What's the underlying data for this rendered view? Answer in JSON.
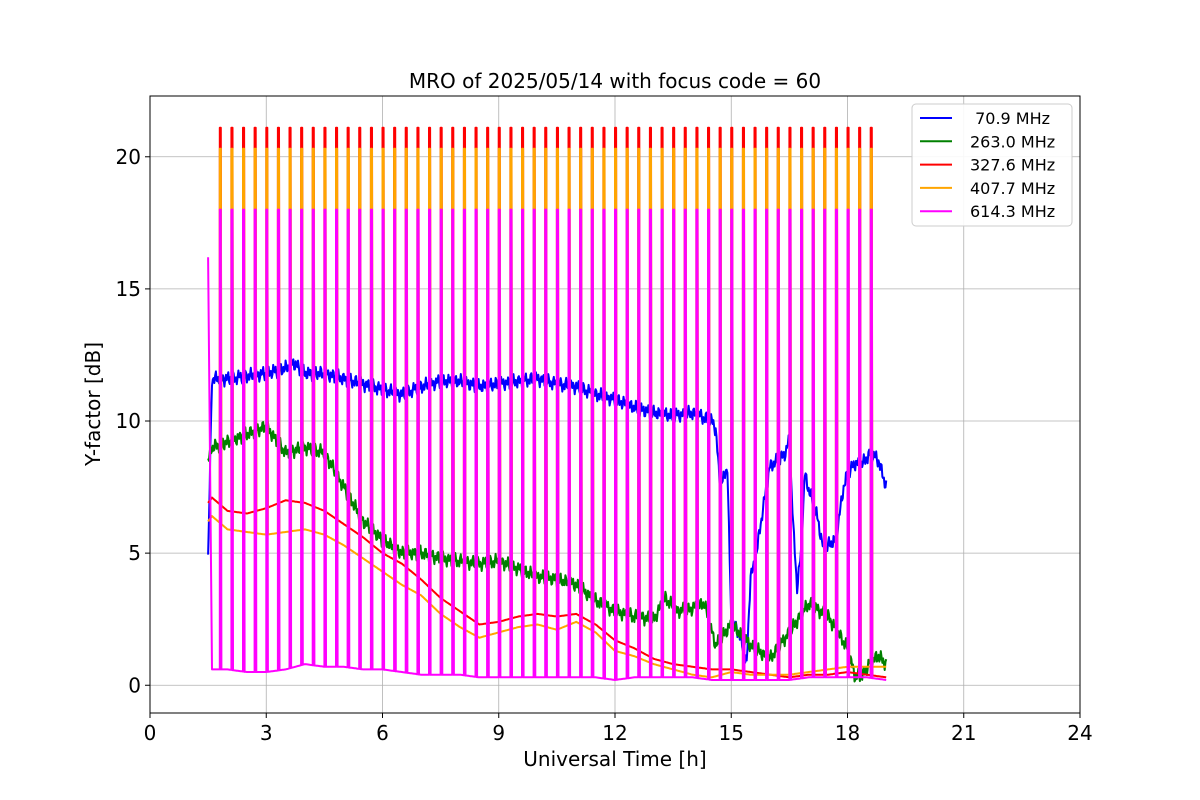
{
  "chart_data": {
    "type": "line",
    "title": "MRO of 2025/05/14 with focus code = 60",
    "xlabel": "Universal Time [h]",
    "ylabel": "Y-factor [dB]",
    "xlim": [
      0,
      24
    ],
    "ylim": [
      -1.05,
      22.3
    ],
    "xticks": [
      0,
      3,
      6,
      9,
      12,
      15,
      18,
      21,
      24
    ],
    "yticks": [
      0,
      5,
      10,
      15,
      20
    ],
    "grid": true,
    "legend_position": "top-right",
    "calibration_pulses": {
      "start_h": 1.5,
      "end_h": 18.85,
      "interval_h": 0.3,
      "width_h": 0.07
    },
    "series": [
      {
        "name": " 70.9 MHz",
        "color": "#0000ff",
        "pulse_top": null,
        "x": [
          1.5,
          1.6,
          2.0,
          2.5,
          3.0,
          3.5,
          3.7,
          4.0,
          4.5,
          5.0,
          5.5,
          6.0,
          6.5,
          7.0,
          7.5,
          8.0,
          8.5,
          9.0,
          9.5,
          10.0,
          10.5,
          11.0,
          11.5,
          12.0,
          12.5,
          13.0,
          13.5,
          14.0,
          14.5,
          14.6,
          14.7,
          14.8,
          14.9,
          15.0,
          15.2,
          15.4,
          15.5,
          15.6,
          15.8,
          16.0,
          16.2,
          16.4,
          16.5,
          16.6,
          16.7,
          16.8,
          16.9,
          17.0,
          17.2,
          17.4,
          17.5,
          17.7,
          17.9,
          18.0,
          18.2,
          18.4,
          18.6,
          18.8,
          19.0
        ],
        "y": [
          4.8,
          11.6,
          11.6,
          11.7,
          11.8,
          12.0,
          12.2,
          11.8,
          11.8,
          11.6,
          11.4,
          11.2,
          11.0,
          11.3,
          11.5,
          11.5,
          11.3,
          11.4,
          11.5,
          11.6,
          11.4,
          11.3,
          11.0,
          10.8,
          10.5,
          10.3,
          10.2,
          10.3,
          10.0,
          9.7,
          7.7,
          7.8,
          8.3,
          2.4,
          2.0,
          0.8,
          4.2,
          4.5,
          6.5,
          8.3,
          8.5,
          8.8,
          9.3,
          6.0,
          3.7,
          5.0,
          8.0,
          7.4,
          6.5,
          5.0,
          5.3,
          5.5,
          7.5,
          8.0,
          8.4,
          8.4,
          8.8,
          8.5,
          7.5
        ]
      },
      {
        "name": "263.0 MHz",
        "color": "#008000",
        "pulse_top": null,
        "x": [
          1.5,
          1.6,
          2.0,
          2.5,
          3.0,
          3.5,
          4.0,
          4.5,
          5.0,
          5.5,
          6.0,
          6.5,
          7.0,
          7.5,
          8.0,
          8.5,
          9.0,
          9.5,
          10.0,
          10.5,
          11.0,
          11.5,
          12.0,
          12.5,
          13.0,
          13.3,
          13.6,
          14.0,
          14.3,
          14.6,
          15.0,
          15.5,
          16.0,
          16.5,
          17.0,
          17.5,
          18.0,
          18.2,
          18.4,
          18.6,
          18.8,
          19.0
        ],
        "y": [
          8.5,
          9.0,
          9.2,
          9.5,
          9.8,
          8.8,
          9.0,
          8.8,
          7.5,
          6.2,
          5.5,
          5.0,
          5.0,
          4.8,
          4.7,
          4.6,
          4.7,
          4.4,
          4.1,
          4.0,
          3.8,
          3.2,
          2.8,
          2.6,
          2.5,
          3.3,
          2.8,
          2.9,
          3.1,
          1.5,
          2.3,
          1.5,
          1.0,
          2.0,
          3.1,
          2.6,
          1.4,
          0.3,
          0.4,
          0.9,
          1.1,
          0.8
        ]
      },
      {
        "name": "327.6 MHz",
        "color": "#ff0000",
        "pulse_top": 21.1,
        "x": [
          1.5,
          1.6,
          2.0,
          2.5,
          3.0,
          3.5,
          4.0,
          4.5,
          5.0,
          5.5,
          6.0,
          6.5,
          7.0,
          7.5,
          8.0,
          8.5,
          9.0,
          9.5,
          10.0,
          10.5,
          11.0,
          11.5,
          12.0,
          12.5,
          13.0,
          13.5,
          14.0,
          14.5,
          15.0,
          15.5,
          16.0,
          16.5,
          17.0,
          17.5,
          18.0,
          18.5,
          19.0
        ],
        "y": [
          6.9,
          7.1,
          6.6,
          6.5,
          6.7,
          7.0,
          6.9,
          6.6,
          6.1,
          5.6,
          5.0,
          4.6,
          4.0,
          3.3,
          2.8,
          2.3,
          2.4,
          2.6,
          2.7,
          2.6,
          2.7,
          2.3,
          1.7,
          1.4,
          1.0,
          0.8,
          0.7,
          0.6,
          0.6,
          0.5,
          0.4,
          0.3,
          0.4,
          0.4,
          0.5,
          0.4,
          0.3
        ]
      },
      {
        "name": "407.7 MHz",
        "color": "#ffa500",
        "pulse_top": 20.3,
        "x": [
          1.5,
          1.6,
          2.0,
          2.5,
          3.0,
          3.5,
          4.0,
          4.5,
          5.0,
          5.5,
          6.0,
          6.5,
          7.0,
          7.5,
          8.0,
          8.5,
          9.0,
          9.5,
          10.0,
          10.5,
          11.0,
          11.5,
          12.0,
          12.5,
          13.0,
          13.5,
          14.0,
          14.5,
          15.0,
          15.5,
          16.0,
          16.5,
          17.0,
          17.5,
          18.0,
          18.5,
          19.0
        ],
        "y": [
          6.2,
          6.4,
          5.9,
          5.8,
          5.7,
          5.8,
          5.9,
          5.7,
          5.3,
          4.8,
          4.3,
          3.8,
          3.4,
          2.7,
          2.2,
          1.8,
          2.0,
          2.2,
          2.3,
          2.1,
          2.4,
          2.0,
          1.3,
          1.1,
          0.8,
          0.6,
          0.4,
          0.3,
          0.5,
          0.4,
          0.4,
          0.4,
          0.5,
          0.6,
          0.7,
          0.7,
          0.7
        ]
      },
      {
        "name": "614.3 MHz",
        "color": "#ff00ff",
        "pulse_top": 18.0,
        "x": [
          1.5,
          1.6,
          2.0,
          2.5,
          3.0,
          3.5,
          4.0,
          4.5,
          5.0,
          5.5,
          6.0,
          6.5,
          7.0,
          7.5,
          8.0,
          8.5,
          9.0,
          9.5,
          10.0,
          10.5,
          11.0,
          11.5,
          12.0,
          12.5,
          13.0,
          13.5,
          14.0,
          14.5,
          15.0,
          15.5,
          16.0,
          16.5,
          17.0,
          17.5,
          18.0,
          18.5,
          19.0
        ],
        "y": [
          16.2,
          0.6,
          0.6,
          0.5,
          0.5,
          0.6,
          0.8,
          0.7,
          0.7,
          0.6,
          0.6,
          0.5,
          0.4,
          0.4,
          0.4,
          0.3,
          0.3,
          0.3,
          0.3,
          0.3,
          0.3,
          0.3,
          0.2,
          0.3,
          0.3,
          0.3,
          0.3,
          0.2,
          0.2,
          0.2,
          0.2,
          0.2,
          0.3,
          0.3,
          0.3,
          0.3,
          0.2
        ]
      }
    ]
  }
}
